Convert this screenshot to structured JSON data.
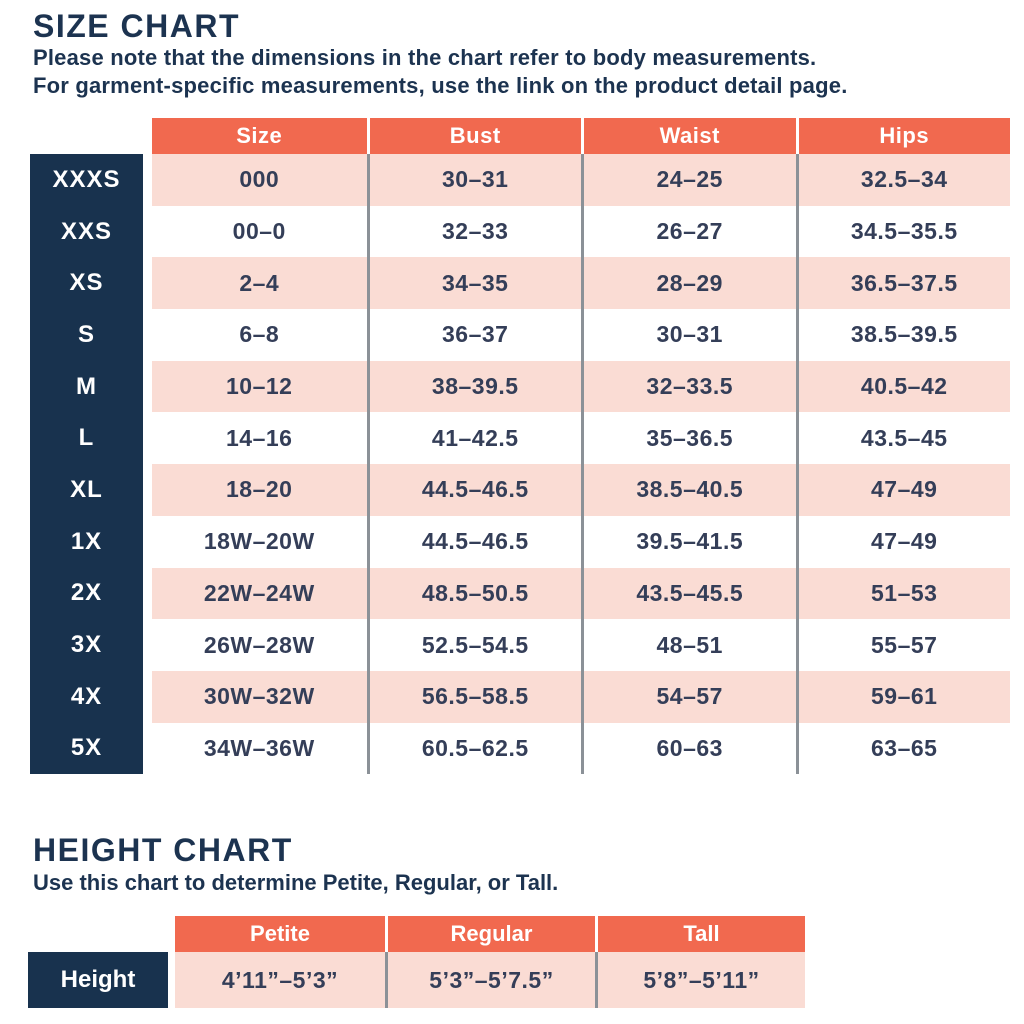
{
  "colors": {
    "accent_coral": "#F1694F",
    "navy": "#18324E",
    "row_pink": "#FADCD4",
    "text_navy": "#343E58",
    "heading_navy": "#1C3350",
    "divider_gray": "#8B9197"
  },
  "size_chart": {
    "title": "SIZE CHART",
    "note_line1": "Please note that the dimensions in the chart refer to body measurements.",
    "note_line2": "For garment-specific measurements, use the link on the product detail page.",
    "columns": [
      "Size",
      "Bust",
      "Waist",
      "Hips"
    ],
    "rows": [
      {
        "label": "XXXS",
        "size": "000",
        "bust": "30–31",
        "waist": "24–25",
        "hips": "32.5–34"
      },
      {
        "label": "XXS",
        "size": "00–0",
        "bust": "32–33",
        "waist": "26–27",
        "hips": "34.5–35.5"
      },
      {
        "label": "XS",
        "size": "2–4",
        "bust": "34–35",
        "waist": "28–29",
        "hips": "36.5–37.5"
      },
      {
        "label": "S",
        "size": "6–8",
        "bust": "36–37",
        "waist": "30–31",
        "hips": "38.5–39.5"
      },
      {
        "label": "M",
        "size": "10–12",
        "bust": "38–39.5",
        "waist": "32–33.5",
        "hips": "40.5–42"
      },
      {
        "label": "L",
        "size": "14–16",
        "bust": "41–42.5",
        "waist": "35–36.5",
        "hips": "43.5–45"
      },
      {
        "label": "XL",
        "size": "18–20",
        "bust": "44.5–46.5",
        "waist": "38.5–40.5",
        "hips": "47–49"
      },
      {
        "label": "1X",
        "size": "18W–20W",
        "bust": "44.5–46.5",
        "waist": "39.5–41.5",
        "hips": "47–49"
      },
      {
        "label": "2X",
        "size": "22W–24W",
        "bust": "48.5–50.5",
        "waist": "43.5–45.5",
        "hips": "51–53"
      },
      {
        "label": "3X",
        "size": "26W–28W",
        "bust": "52.5–54.5",
        "waist": "48–51",
        "hips": "55–57"
      },
      {
        "label": "4X",
        "size": "30W–32W",
        "bust": "56.5–58.5",
        "waist": "54–57",
        "hips": "59–61"
      },
      {
        "label": "5X",
        "size": "34W–36W",
        "bust": "60.5–62.5",
        "waist": "60–63",
        "hips": "63–65"
      }
    ]
  },
  "height_chart": {
    "title": "HEIGHT CHART",
    "note": "Use this chart to determine Petite, Regular, or Tall.",
    "columns": [
      "Petite",
      "Regular",
      "Tall"
    ],
    "row_label": "Height",
    "values": [
      "4’11”–5’3”",
      "5’3”–5’7.5”",
      "5’8”–5’11”"
    ]
  }
}
